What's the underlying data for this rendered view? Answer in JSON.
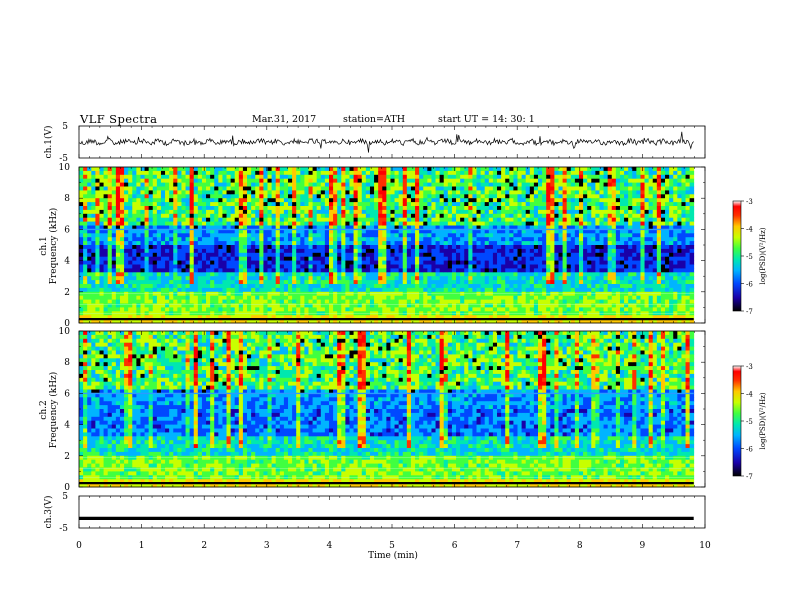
{
  "header": {
    "title": "VLF  Spectra",
    "date": "Mar.31, 2017",
    "station": "station=ATH",
    "start": "start  UT  =   14: 30: 1"
  },
  "colors": {
    "spectro_palette": [
      "#000000",
      "#1a00a8",
      "#0048ff",
      "#00b4ff",
      "#00e8b0",
      "#40ff40",
      "#c8ff00",
      "#ffc800",
      "#ff3000",
      "#ff0000",
      "#ffffff"
    ],
    "trace": "#000000"
  },
  "chart_data": [
    {
      "type": "line",
      "name": "ch1-waveform",
      "ylabel": "ch.1(V)",
      "ylim": [
        -5,
        5
      ],
      "yticks": [
        "5",
        "-5"
      ],
      "xlim": [
        0,
        10
      ],
      "description_values": {
        "mean": 0,
        "noise_amplitude": 1.2
      },
      "series": [
        {
          "values_summary": "noisy waveform near 0 V with occasional spikes"
        }
      ]
    },
    {
      "type": "heatmap",
      "name": "ch1-spectrogram",
      "ylabel": "ch.1\nFrequency  (kHz)",
      "ylabel_line1": "ch.1",
      "ylabel_line2": "Frequency  (kHz)",
      "ylim": [
        0,
        10
      ],
      "yticks": [
        "0",
        "2",
        "4",
        "6",
        "8",
        "10"
      ],
      "xlim": [
        0,
        10
      ],
      "x_extent": 9.82,
      "colorbar": {
        "label": "log(PSD)(V²/Hz)",
        "range": [
          -7,
          -3
        ],
        "ticks": [
          "-3",
          "-4",
          "-5",
          "-6",
          "-7"
        ]
      }
    },
    {
      "type": "heatmap",
      "name": "ch2-spectrogram",
      "ylabel_line1": "ch.2",
      "ylabel_line2": "Frequency  (kHz)",
      "ylim": [
        0,
        10
      ],
      "yticks": [
        "0",
        "2",
        "4",
        "6",
        "8",
        "10"
      ],
      "xlim": [
        0,
        10
      ],
      "x_extent": 9.82,
      "colorbar": {
        "label": "log(PSD)(V²/Hz)",
        "range": [
          -7,
          -3
        ],
        "ticks": [
          "-3",
          "-4",
          "-5",
          "-6",
          "-7"
        ]
      }
    },
    {
      "type": "line",
      "name": "ch3-waveform",
      "ylabel": "ch.3(V)",
      "ylim": [
        -5,
        5
      ],
      "yticks": [
        "5",
        "-5"
      ],
      "xlim": [
        0,
        10
      ],
      "series": [
        {
          "values_summary": "flat trace near -2 V"
        }
      ],
      "level": -2
    }
  ],
  "xaxis": {
    "label": "Time  (min)",
    "ticks": [
      "0",
      "1",
      "2",
      "3",
      "4",
      "5",
      "6",
      "7",
      "8",
      "9",
      "10"
    ]
  }
}
